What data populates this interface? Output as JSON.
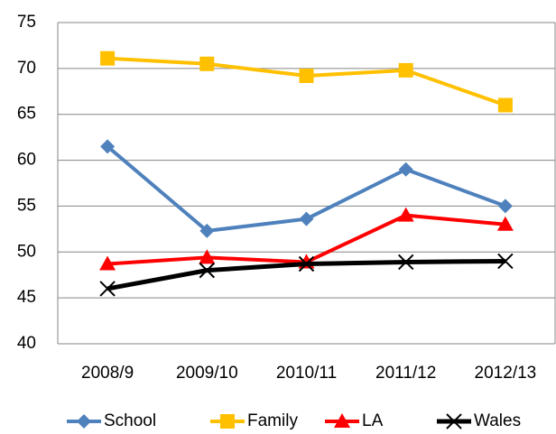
{
  "chart_data": {
    "type": "line",
    "categories": [
      "2008/9",
      "2009/10",
      "2010/11",
      "2011/12",
      "2012/13"
    ],
    "series": [
      {
        "name": "School",
        "color": "#4f81bd",
        "marker": "diamond",
        "values": [
          61.5,
          52.3,
          53.6,
          59,
          55
        ]
      },
      {
        "name": "Family",
        "color": "#ffc000",
        "marker": "square",
        "values": [
          71.1,
          70.5,
          69.2,
          69.8,
          66
        ]
      },
      {
        "name": "LA",
        "color": "#ff0000",
        "marker": "triangle",
        "values": [
          48.7,
          49.4,
          48.9,
          54,
          53
        ]
      },
      {
        "name": "Wales",
        "color": "#000000",
        "marker": "x",
        "values": [
          46,
          48,
          48.7,
          48.9,
          49
        ]
      }
    ],
    "ylim": [
      40,
      75
    ],
    "yticks": [
      40,
      45,
      50,
      55,
      60,
      65,
      70,
      75
    ],
    "grid": true,
    "legend": "bottom"
  }
}
